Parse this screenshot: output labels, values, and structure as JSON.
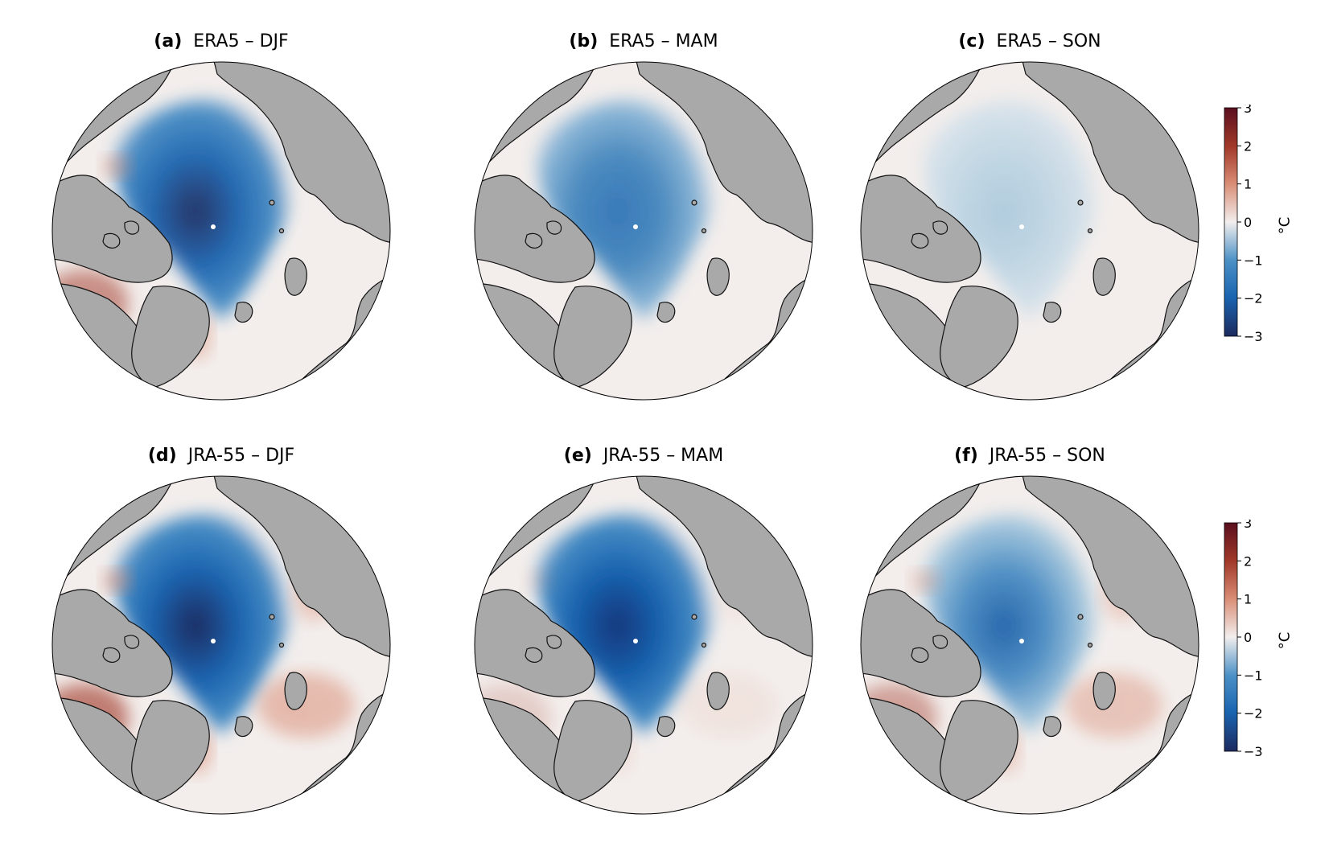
{
  "panels": [
    {
      "label": "(a)",
      "title": "ERA5 – DJF",
      "pattern": "era5-djf"
    },
    {
      "label": "(b)",
      "title": "ERA5 – MAM",
      "pattern": "era5-mam"
    },
    {
      "label": "(c)",
      "title": "ERA5 – SON",
      "pattern": "era5-son"
    },
    {
      "label": "(d)",
      "title": "JRA-55 – DJF",
      "pattern": "jra-djf"
    },
    {
      "label": "(e)",
      "title": "JRA-55 – MAM",
      "pattern": "jra-mam"
    },
    {
      "label": "(f)",
      "title": "JRA-55 – SON",
      "pattern": "jra-son"
    }
  ],
  "colorbar": {
    "unit": "°C",
    "ticks": [
      "3",
      "2",
      "1",
      "0",
      "−1",
      "−2",
      "−3"
    ],
    "range": [
      -3,
      3
    ]
  },
  "colors": {
    "land": "#a9a9a9",
    "neutral": "#f3eeec",
    "cold_strong": "#1d2a5e",
    "cold_mid": "#1a64b0",
    "cold_light": "#4a90c6",
    "warm_mid": "#d98c74",
    "warm_strong": "#a23a2a"
  }
}
